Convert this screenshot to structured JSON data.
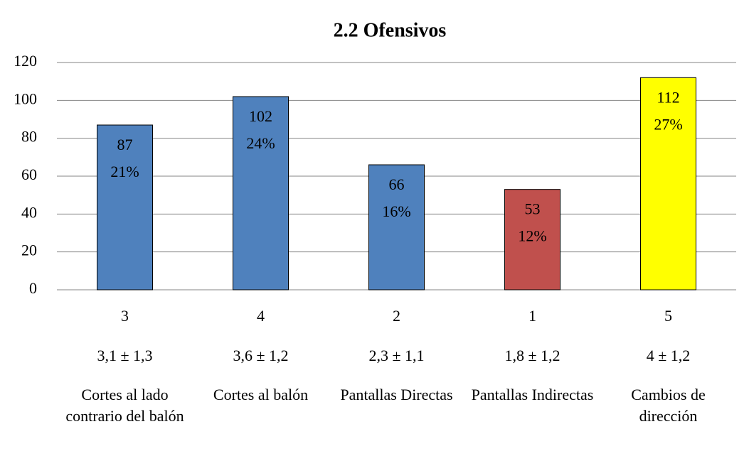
{
  "chart_data": {
    "type": "bar",
    "title": "2.2 Ofensivos",
    "categories": [
      "Cortes al lado contrario del balón",
      "Cortes al balón",
      "Pantallas Directas",
      "Pantallas Indirectas",
      "Cambios de dirección"
    ],
    "ranks": [
      "3",
      "4",
      "2",
      "1",
      "5"
    ],
    "stats": [
      "3,1 ± 1,3",
      "3,6 ± 1,2",
      "2,3 ± 1,1",
      "1,8 ± 1,2",
      "4 ± 1,2"
    ],
    "values": [
      87,
      102,
      66,
      53,
      112
    ],
    "percent_labels": [
      "21%",
      "24%",
      "16%",
      "12%",
      "27%"
    ],
    "colors": [
      "#4f81bd",
      "#4f81bd",
      "#4f81bd",
      "#c0504d",
      "#ffff00"
    ],
    "ylim": [
      0,
      120
    ],
    "yticks": [
      0,
      20,
      40,
      60,
      80,
      100,
      120
    ],
    "grid": true
  }
}
